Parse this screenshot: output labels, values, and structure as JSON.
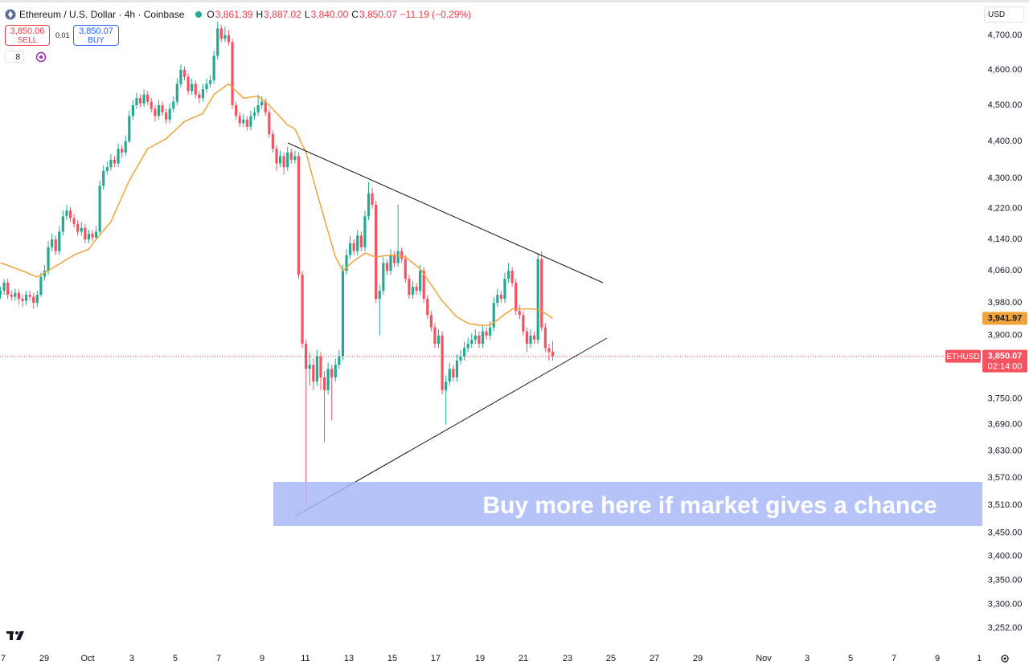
{
  "header": {
    "title": "Ethereum / U.S. Dollar · 4h · Coinbase",
    "o_label": "O",
    "open": "3,861.39",
    "h_label": "H",
    "high": "3,887.02",
    "l_label": "L",
    "low": "3,840.00",
    "c_label": "C",
    "close": "3,850.07",
    "change": "−11.19 (−0.29%)"
  },
  "trade_panel": {
    "sell_price": "3,850.06",
    "sell_label": "SELL",
    "spread": "0.01",
    "buy_price": "3,850.07",
    "buy_label": "BUY",
    "indicator_count": "8"
  },
  "currency": "USD",
  "chart_data": {
    "type": "candlestick",
    "open": [
      4000,
      4010,
      4030,
      4000,
      3995,
      4005,
      3990,
      3985,
      4000,
      3995,
      3980,
      4000,
      4045,
      4060,
      4120,
      4140,
      4110,
      4160,
      4200,
      4215,
      4195,
      4180,
      4160,
      4170,
      4140,
      4155,
      4145,
      4160,
      4280,
      4320,
      4330,
      4350,
      4340,
      4380,
      4370,
      4400,
      4470,
      4500,
      4520,
      4505,
      4530,
      4510,
      4490,
      4470,
      4500,
      4480,
      4460,
      4490,
      4510,
      4560,
      4600,
      4580,
      4540,
      4560,
      4530,
      4520,
      4545,
      4560,
      4570,
      4640,
      4720,
      4690,
      4700,
      4680,
      4500,
      4470,
      4450,
      4460,
      4440,
      4470,
      4480,
      4500,
      4510,
      4480,
      4420,
      4380,
      4340,
      4360,
      4330,
      4370,
      4350,
      4360,
      4050,
      3880,
      3820,
      3830,
      3790,
      3850,
      3800,
      3770,
      3820,
      3800,
      3830,
      3850,
      4060,
      4100,
      4130,
      4110,
      4150,
      4120,
      4200,
      4260,
      4230,
      3990,
      4010,
      4080,
      4060,
      4100,
      4080,
      4110,
      4090,
      4040,
      4000,
      4020,
      4010,
      4060,
      3990,
      3950,
      3920,
      3880,
      3900,
      3770,
      3790,
      3820,
      3800,
      3840,
      3850,
      3870,
      3880,
      3890,
      3900,
      3880,
      3910,
      3900,
      3920,
      3980,
      4000,
      3990,
      4040,
      4060,
      4030,
      3960,
      3950,
      3910,
      3880,
      3900,
      3890,
      4090,
      3920,
      3870,
      3861.39
    ],
    "high": [
      4020,
      4040,
      4040,
      4010,
      4015,
      4015,
      4000,
      4010,
      4010,
      4005,
      4010,
      4055,
      4075,
      4135,
      4155,
      4150,
      4175,
      4215,
      4230,
      4225,
      4205,
      4190,
      4185,
      4180,
      4165,
      4165,
      4175,
      4295,
      4335,
      4345,
      4365,
      4360,
      4395,
      4390,
      4415,
      4485,
      4515,
      4535,
      4530,
      4545,
      4540,
      4520,
      4500,
      4515,
      4510,
      4490,
      4505,
      4525,
      4575,
      4615,
      4610,
      4590,
      4575,
      4570,
      4540,
      4560,
      4575,
      4585,
      4655,
      4740,
      4730,
      4725,
      4715,
      4690,
      4510,
      4480,
      4475,
      4470,
      4485,
      4495,
      4530,
      4525,
      4520,
      4490,
      4430,
      4390,
      4375,
      4370,
      4385,
      4380,
      4375,
      4370,
      4060,
      3890,
      3860,
      3845,
      3865,
      3860,
      3815,
      3835,
      3830,
      3845,
      3865,
      4075,
      4115,
      4150,
      4140,
      4165,
      4160,
      4215,
      4290,
      4275,
      4240,
      4025,
      4095,
      4090,
      4115,
      4110,
      4230,
      4120,
      4100,
      4050,
      4035,
      4030,
      4075,
      4070,
      4000,
      3960,
      3930,
      3915,
      3910,
      3805,
      3835,
      3830,
      3855,
      3865,
      3885,
      3895,
      3905,
      3915,
      3910,
      3925,
      3920,
      3935,
      3995,
      4015,
      4010,
      4055,
      4080,
      4070,
      4040,
      3975,
      3960,
      3920,
      3915,
      3910,
      4105,
      4110,
      3930,
      3880,
      3887.02
    ],
    "low": [
      3990,
      4000,
      3990,
      3985,
      3985,
      3975,
      3970,
      3975,
      3985,
      3965,
      3970,
      3995,
      4035,
      4050,
      4110,
      4100,
      4100,
      4150,
      4190,
      4185,
      4170,
      4150,
      4150,
      4130,
      4130,
      4135,
      4140,
      4155,
      4270,
      4310,
      4320,
      4330,
      4330,
      4355,
      4360,
      4395,
      4460,
      4490,
      4495,
      4495,
      4500,
      4480,
      4455,
      4460,
      4470,
      4450,
      4450,
      4480,
      4500,
      4550,
      4570,
      4530,
      4530,
      4520,
      4505,
      4510,
      4535,
      4550,
      4560,
      4630,
      4680,
      4680,
      4670,
      4490,
      4460,
      4440,
      4440,
      4430,
      4430,
      4460,
      4470,
      4490,
      4470,
      4410,
      4370,
      4320,
      4330,
      4310,
      4320,
      4340,
      4340,
      4040,
      3870,
      3510,
      3780,
      3770,
      3780,
      3770,
      3650,
      3760,
      3700,
      3790,
      3820,
      3840,
      4050,
      4090,
      4100,
      4100,
      4110,
      4110,
      4190,
      4220,
      3980,
      3900,
      4000,
      4050,
      4050,
      4070,
      4070,
      4080,
      4030,
      3990,
      3990,
      4000,
      4000,
      3980,
      3940,
      3910,
      3870,
      3870,
      3760,
      3690,
      3780,
      3790,
      3790,
      3830,
      3840,
      3860,
      3870,
      3880,
      3870,
      3870,
      3890,
      3890,
      3910,
      3970,
      3980,
      3980,
      4030,
      4020,
      3950,
      3940,
      3900,
      3860,
      3870,
      3880,
      3880,
      3910,
      3860,
      3840,
      3840
    ],
    "close": [
      4010,
      4030,
      4000,
      3995,
      4005,
      3990,
      3985,
      4000,
      3995,
      3980,
      4000,
      4045,
      4060,
      4120,
      4140,
      4110,
      4160,
      4200,
      4215,
      4195,
      4180,
      4160,
      4170,
      4140,
      4155,
      4145,
      4160,
      4280,
      4320,
      4330,
      4350,
      4340,
      4380,
      4370,
      4400,
      4470,
      4500,
      4520,
      4505,
      4530,
      4510,
      4490,
      4470,
      4500,
      4480,
      4460,
      4490,
      4510,
      4560,
      4600,
      4580,
      4540,
      4560,
      4530,
      4520,
      4545,
      4560,
      4570,
      4640,
      4720,
      4690,
      4700,
      4680,
      4500,
      4470,
      4450,
      4460,
      4440,
      4470,
      4480,
      4500,
      4510,
      4480,
      4420,
      4380,
      4340,
      4360,
      4330,
      4370,
      4350,
      4360,
      4050,
      3880,
      3820,
      3830,
      3790,
      3850,
      3800,
      3770,
      3820,
      3800,
      3830,
      3850,
      4060,
      4100,
      4130,
      4110,
      4150,
      4120,
      4200,
      4260,
      4230,
      3990,
      4010,
      4080,
      4060,
      4100,
      4080,
      4110,
      4090,
      4040,
      4000,
      4020,
      4010,
      4060,
      3990,
      3950,
      3920,
      3880,
      3900,
      3770,
      3790,
      3820,
      3800,
      3840,
      3850,
      3870,
      3880,
      3890,
      3900,
      3880,
      3910,
      3900,
      3920,
      3980,
      4000,
      3990,
      4040,
      4060,
      4030,
      3960,
      3950,
      3910,
      3880,
      3900,
      3890,
      4090,
      3920,
      3870,
      3860,
      3850.07
    ],
    "up_color": "#22ab94",
    "down_color": "#f7525f",
    "ma": {
      "color": "#f0a33a",
      "value_label": "3,941.97",
      "values": [
        4080,
        4077,
        4074,
        4070,
        4067,
        4063,
        4060,
        4056,
        4052,
        4048,
        4045,
        4050,
        4055,
        4061,
        4066,
        4072,
        4077,
        4083,
        4089,
        4094,
        4100,
        4104,
        4108,
        4111,
        4115,
        4128,
        4140,
        4151,
        4163,
        4174,
        4185,
        4207,
        4229,
        4250,
        4272,
        4294,
        4311,
        4328,
        4346,
        4363,
        4380,
        4385,
        4391,
        4396,
        4402,
        4407,
        4417,
        4426,
        4436,
        4445,
        4455,
        4459,
        4464,
        4468,
        4473,
        4477,
        4495,
        4512,
        4530,
        4538,
        4545,
        4553,
        4560,
        4550,
        4540,
        4530,
        4520,
        4521,
        4523,
        4524,
        4525,
        4517,
        4508,
        4500,
        4489,
        4478,
        4467,
        4456,
        4445,
        4440,
        4434,
        4413,
        4391,
        4370,
        4333,
        4297,
        4260,
        4227,
        4193,
        4160,
        4128,
        4095,
        4078,
        4060,
        4068,
        4077,
        4085,
        4092,
        4098,
        4105,
        4102,
        4098,
        4095,
        4096,
        4098,
        4099,
        4100,
        4099,
        4098,
        4096,
        4095,
        4088,
        4080,
        4073,
        4065,
        4052,
        4038,
        4025,
        4012,
        3998,
        3985,
        3975,
        3965,
        3955,
        3945,
        3940,
        3935,
        3930,
        3928,
        3927,
        3925,
        3925,
        3925,
        3925,
        3932,
        3938,
        3945,
        3952,
        3958,
        3965,
        3965,
        3965,
        3965,
        3965,
        3965,
        3965,
        3963,
        3960,
        3954,
        3948,
        3941.97
      ]
    },
    "symbol_label": "ETHUSD",
    "last_price_label": "3,850.07",
    "countdown": "02:14:00",
    "annotation": "Buy more here if market gives a chance",
    "log_scale": true,
    "grid": false,
    "ylim": [
      3210,
      4804
    ],
    "yticks": [
      {
        "value": 4700,
        "label": "4,700.00"
      },
      {
        "value": 4600,
        "label": "4,600.00"
      },
      {
        "value": 4500,
        "label": "4,500.00"
      },
      {
        "value": 4400,
        "label": "4,400.00"
      },
      {
        "value": 4300,
        "label": "4,300.00"
      },
      {
        "value": 4220,
        "label": "4,220.00"
      },
      {
        "value": 4140,
        "label": "4,140.00"
      },
      {
        "value": 4060,
        "label": "4,060.00"
      },
      {
        "value": 3980,
        "label": "3,980.00"
      },
      {
        "value": 3900,
        "label": "3,900.00"
      },
      {
        "value": 3750,
        "label": "3,750.00"
      },
      {
        "value": 3690,
        "label": "3,690.00"
      },
      {
        "value": 3630,
        "label": "3,630.00"
      },
      {
        "value": 3570,
        "label": "3,570.00"
      },
      {
        "value": 3510,
        "label": "3,510.00"
      },
      {
        "value": 3450,
        "label": "3,450.00"
      },
      {
        "value": 3400,
        "label": "3,400.00"
      },
      {
        "value": 3350,
        "label": "3,350.00"
      },
      {
        "value": 3300,
        "label": "3,300.00"
      },
      {
        "value": 3252,
        "label": "3,252.00"
      }
    ],
    "x_labels": [
      "7",
      "29",
      "Oct",
      "3",
      "5",
      "7",
      "9",
      "11",
      "13",
      "15",
      "17",
      "19",
      "21",
      "23",
      "25",
      "27",
      "29",
      "Nov",
      "3",
      "5",
      "7",
      "9",
      "1"
    ]
  }
}
